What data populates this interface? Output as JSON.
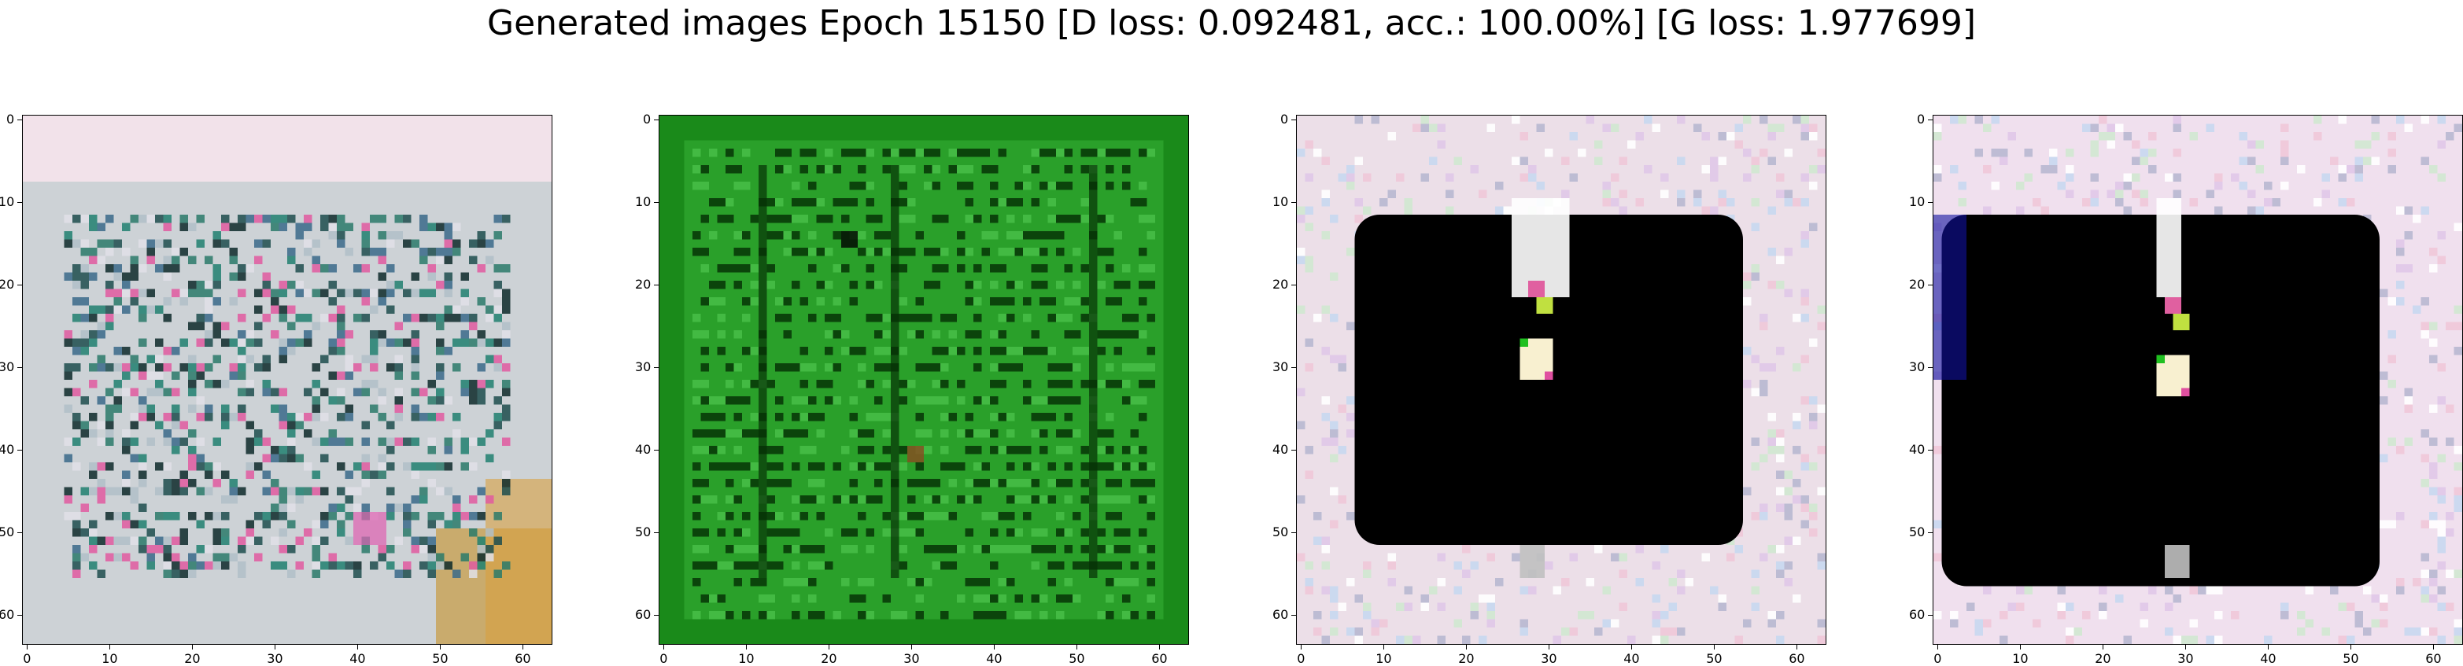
{
  "title": "Generated images Epoch 15150 [D loss: 0.092481, acc.: 100.00%] [G loss: 1.977699]",
  "axes": {
    "x_ticks": [
      "0",
      "10",
      "20",
      "30",
      "40",
      "50",
      "60"
    ],
    "y_ticks": [
      "0",
      "10",
      "20",
      "30",
      "40",
      "50",
      "60"
    ]
  },
  "panels": [
    {
      "id": "sample-1",
      "style": "pale-glyph-grid",
      "bg": "#cdd2d6",
      "accent": "#1f3f3f"
    },
    {
      "id": "sample-2",
      "style": "green-grid",
      "bg": "#1e8a1e",
      "accent": "#0a3a0a"
    },
    {
      "id": "sample-3",
      "style": "dark-box",
      "bg": "#ecdfe8",
      "accent": "#000000"
    },
    {
      "id": "sample-4",
      "style": "dark-box-wide",
      "bg": "#f0e0ee",
      "accent": "#000000"
    }
  ]
}
